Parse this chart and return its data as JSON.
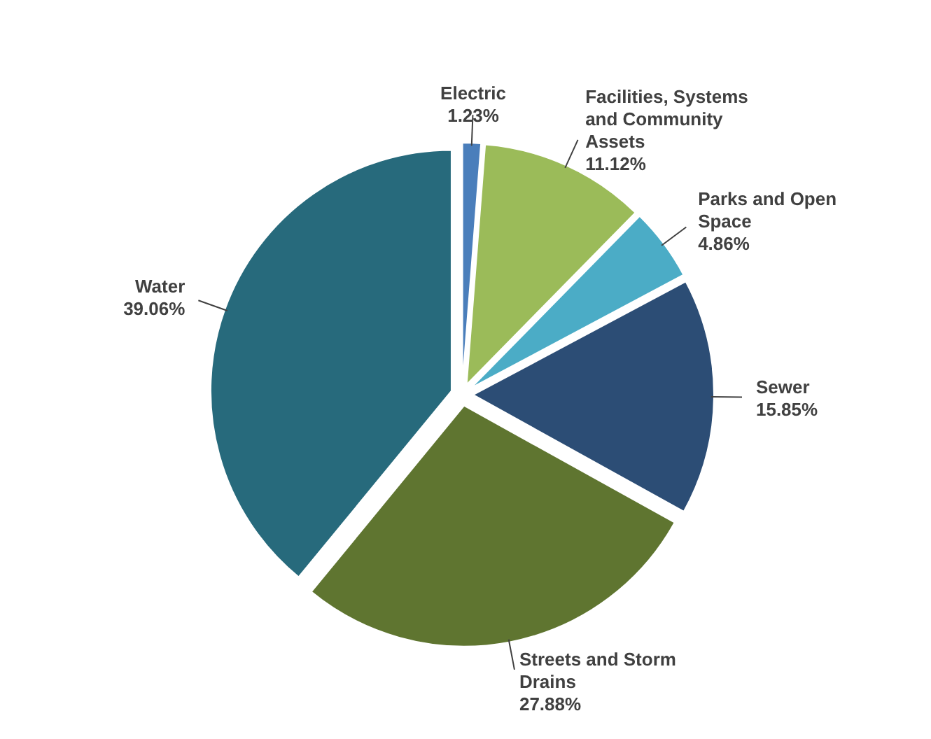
{
  "chart_data": {
    "type": "pie",
    "categories": [
      "Electric",
      "Facilities, Systems and Community Assets",
      "Parks and Open Space",
      "Sewer",
      "Streets and Storm Drains",
      "Water"
    ],
    "values": [
      1.23,
      11.12,
      4.86,
      15.85,
      27.88,
      39.06
    ],
    "colors": [
      "#4a7ebb",
      "#9bbb59",
      "#4bacc6",
      "#2c4d75",
      "#5f7530",
      "#276a7c"
    ],
    "value_labels": [
      "1.23%",
      "11.12%",
      "4.86%",
      "15.85%",
      "27.88%",
      "39.06%"
    ]
  }
}
